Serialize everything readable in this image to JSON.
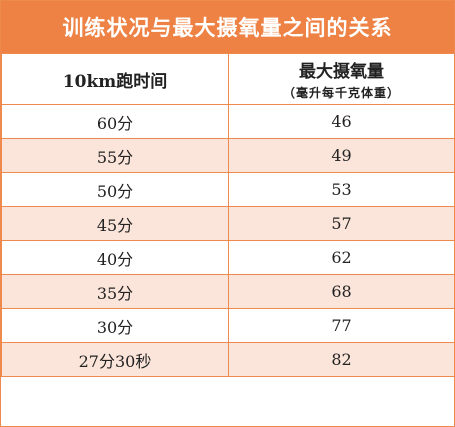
{
  "title": "训练状况与最大摄氧量之间的关系",
  "headers": {
    "col1": "10km跑时间",
    "col2": "最大摄氧量",
    "col2_unit": "（毫升每千克体重）"
  },
  "rows": [
    {
      "time": "60分",
      "vo2": "46"
    },
    {
      "time": "55分",
      "vo2": "49"
    },
    {
      "time": "50分",
      "vo2": "53"
    },
    {
      "time": "45分",
      "vo2": "57"
    },
    {
      "time": "40分",
      "vo2": "62"
    },
    {
      "time": "35分",
      "vo2": "68"
    },
    {
      "time": "30分",
      "vo2": "77"
    },
    {
      "time": "27分30秒",
      "vo2": "82"
    }
  ],
  "colors": {
    "accent": "#ee8245",
    "stripe": "#fbe5da",
    "border": "#ef8a4e"
  }
}
